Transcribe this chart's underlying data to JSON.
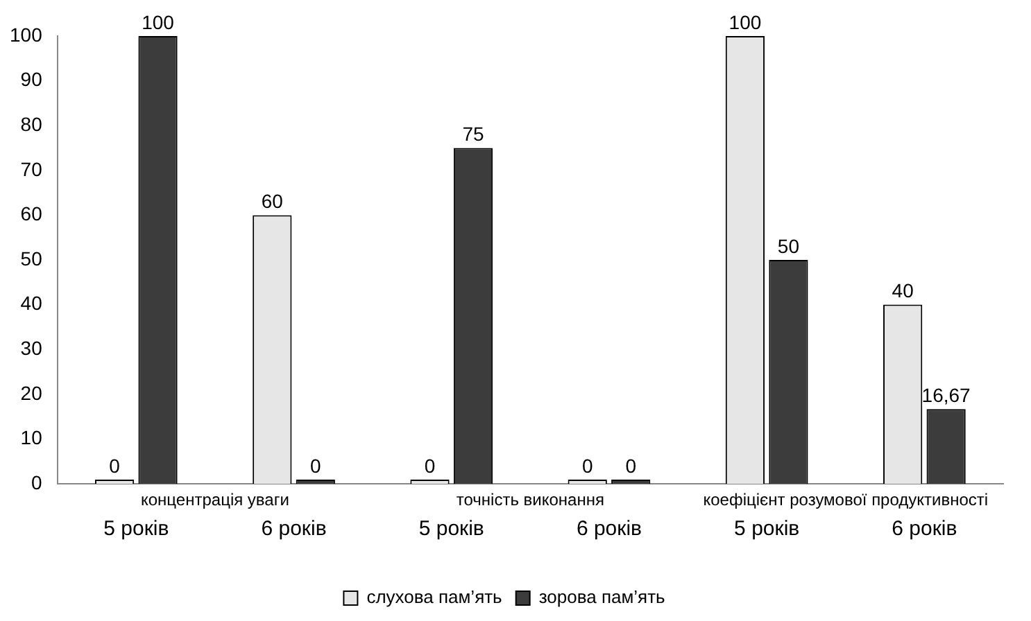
{
  "chart_data": {
    "type": "bar",
    "categories": [
      "5 років",
      "6 років",
      "5 років",
      "6 років",
      "5 років",
      "6 років"
    ],
    "series": [
      {
        "name": "слухова пам’ять",
        "color": "#e6e6e6",
        "values": [
          0,
          60,
          0,
          0,
          100,
          40
        ],
        "value_labels": [
          "0",
          "60",
          "0",
          "0",
          "100",
          "40"
        ]
      },
      {
        "name": "зорова пам’ять",
        "color": "#3c3c3c",
        "values": [
          100,
          0,
          75,
          0,
          50,
          16.67
        ],
        "value_labels": [
          "100",
          "0",
          "75",
          "0",
          "50",
          "16,67"
        ]
      }
    ],
    "annotations": [
      "концентрація уваги",
      "точність виконання",
      "коефіцієнт розумової продуктивності"
    ],
    "ylim": [
      0,
      100
    ],
    "yticks": [
      0,
      10,
      20,
      30,
      40,
      50,
      60,
      70,
      80,
      90,
      100
    ],
    "grid": false,
    "legend": "bottom"
  }
}
